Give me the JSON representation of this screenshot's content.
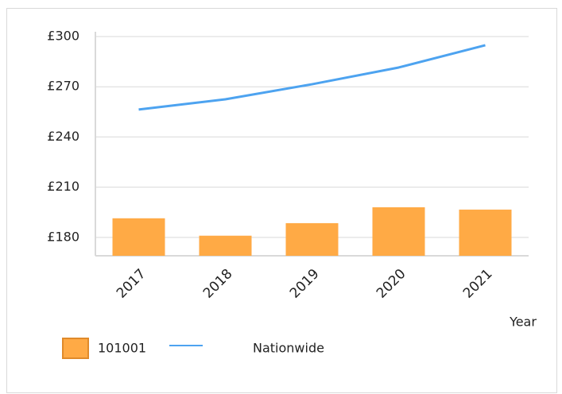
{
  "chart_data": {
    "type": "bar",
    "x_label": "Year",
    "categories": [
      "2017",
      "2018",
      "2019",
      "2020",
      "2021"
    ],
    "series": [
      {
        "name": "101001",
        "type": "bar",
        "color": "#FFAA45",
        "values": [
          191.4,
          181,
          188.5,
          198,
          196.6
        ]
      },
      {
        "name": "Nationwide",
        "type": "line",
        "color": "#4DA3F0",
        "values": [
          256.4,
          262.5,
          271.5,
          281.5,
          294.8
        ]
      }
    ],
    "ylim": [
      169,
      300
    ],
    "yticks": [
      {
        "value": 180,
        "label": "£180"
      },
      {
        "value": 210,
        "label": "£210"
      },
      {
        "value": 240,
        "label": "£240"
      },
      {
        "value": 270,
        "label": "£270"
      },
      {
        "value": 300,
        "label": "£300"
      }
    ],
    "grid": true
  }
}
